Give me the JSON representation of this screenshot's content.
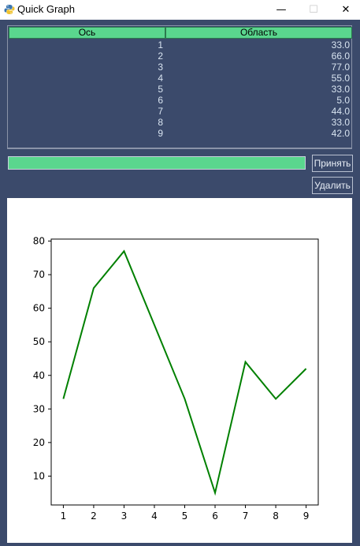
{
  "window": {
    "title": "Quick Graph",
    "minimize_glyph": "—",
    "maximize_glyph": "☐",
    "close_glyph": "✕"
  },
  "table": {
    "columns": [
      "Ось",
      "Область"
    ],
    "rows": [
      {
        "axis": "1",
        "area": "33.0"
      },
      {
        "axis": "2",
        "area": "66.0"
      },
      {
        "axis": "3",
        "area": "77.0"
      },
      {
        "axis": "4",
        "area": "55.0"
      },
      {
        "axis": "5",
        "area": "33.0"
      },
      {
        "axis": "6",
        "area": "5.0"
      },
      {
        "axis": "7",
        "area": "44.0"
      },
      {
        "axis": "8",
        "area": "33.0"
      },
      {
        "axis": "9",
        "area": "42.0"
      }
    ]
  },
  "controls": {
    "entry_value": "",
    "accept_label": "Принять",
    "delete_label": "Удалить"
  },
  "colors": {
    "accent_green": "#5ad68e",
    "window_bg": "#3b4a6b",
    "line": "#008000"
  },
  "chart_data": {
    "type": "line",
    "x": [
      1,
      2,
      3,
      4,
      5,
      6,
      7,
      8,
      9
    ],
    "series": [
      {
        "values": [
          33,
          66,
          77,
          55,
          33,
          5,
          44,
          33,
          42
        ]
      }
    ],
    "x_ticks": [
      1,
      2,
      3,
      4,
      5,
      6,
      7,
      8,
      9
    ],
    "y_ticks": [
      10,
      20,
      30,
      40,
      50,
      60,
      70,
      80
    ],
    "xlim": [
      0.6,
      9.4
    ],
    "ylim": [
      1.4,
      80.6
    ],
    "grid": false,
    "color": "#008000"
  }
}
